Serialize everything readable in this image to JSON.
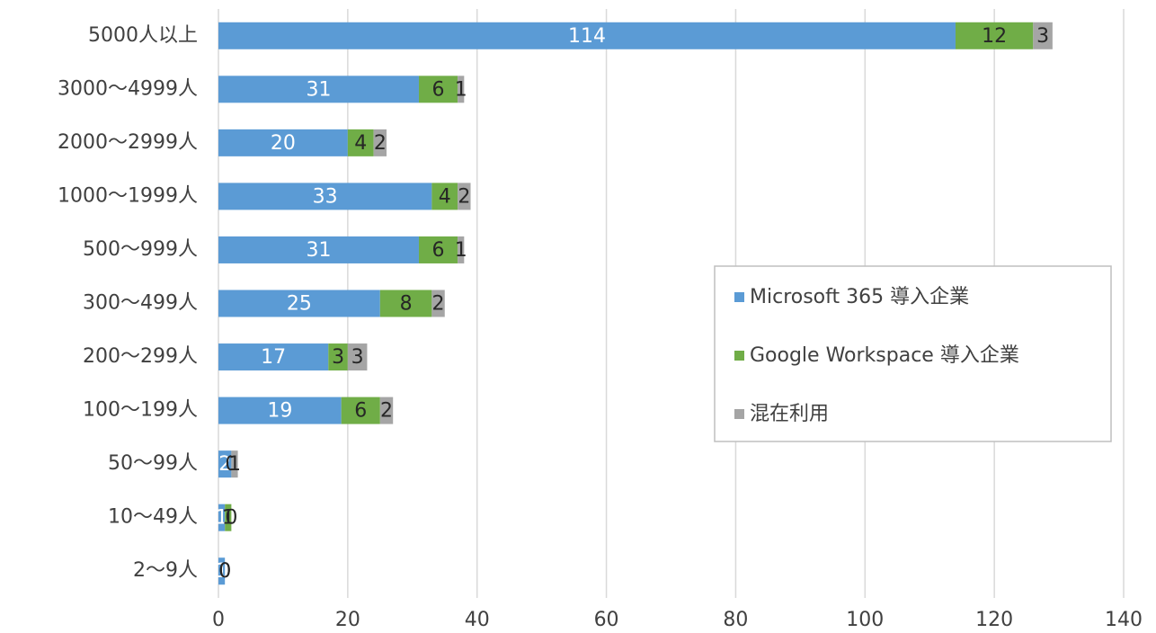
{
  "chart_data": {
    "type": "stacked_bar_horizontal",
    "categories": [
      "5000人以上",
      "3000～4999人",
      "2000～2999人",
      "1000～1999人",
      "500～999人",
      "300～499人",
      "200～299人",
      "100～199人",
      "50～99人",
      "10～49人",
      "2～9人"
    ],
    "series": [
      {
        "name": "Microsoft 365 導入企業",
        "color": "#5b9bd5",
        "values": [
          114,
          31,
          20,
          33,
          31,
          25,
          17,
          19,
          2,
          1,
          1
        ]
      },
      {
        "name": "Google Workspace 導入企業",
        "color": "#70ad47",
        "values": [
          12,
          6,
          4,
          4,
          6,
          8,
          3,
          6,
          0,
          1,
          0
        ]
      },
      {
        "name": "混在利用",
        "color": "#a5a5a5",
        "values": [
          3,
          1,
          2,
          2,
          1,
          2,
          3,
          2,
          1,
          0,
          0
        ]
      }
    ],
    "xlim": [
      0,
      140
    ],
    "xticks": [
      0,
      20,
      40,
      60,
      80,
      100,
      120,
      140
    ],
    "grid": true,
    "legend_position": "right"
  }
}
